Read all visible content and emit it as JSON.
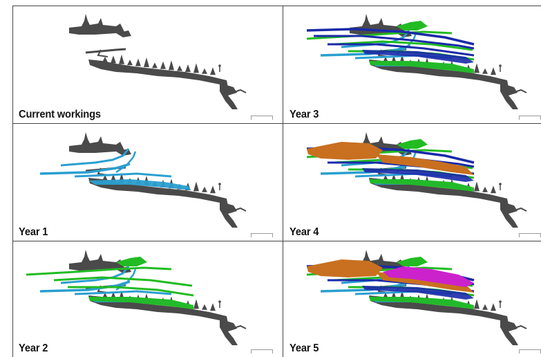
{
  "panels": [
    {
      "caption": "Current workings",
      "layers": []
    },
    {
      "caption": "Year 1",
      "layers": [
        "year1"
      ]
    },
    {
      "caption": "Year 2",
      "layers": [
        "year1",
        "year2"
      ]
    },
    {
      "caption": "Year 3",
      "layers": [
        "year1",
        "year2",
        "year3"
      ]
    },
    {
      "caption": "Year 4",
      "layers": [
        "year1",
        "year2",
        "year3",
        "year4"
      ]
    },
    {
      "caption": "Year 5",
      "layers": [
        "year1",
        "year2",
        "year3",
        "year4",
        "year5"
      ]
    }
  ],
  "colors": {
    "current": "#4a4a4a",
    "year1": "#2a9fd0",
    "year2": "#22bb22",
    "year3": "#1a2aa8",
    "year4": "#c87020",
    "year5": "#cc22cc",
    "frame": "#444444"
  }
}
